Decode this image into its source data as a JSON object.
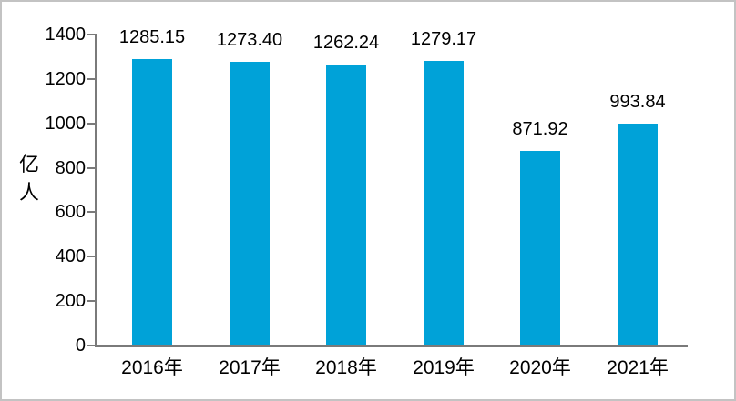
{
  "chart_data": {
    "type": "bar",
    "title": "",
    "categories": [
      "2016年",
      "2017年",
      "2018年",
      "2019年",
      "2020年",
      "2021年"
    ],
    "values": [
      1285.15,
      1273.4,
      1262.24,
      1279.17,
      871.92,
      993.84
    ],
    "data_labels": [
      "1285.15",
      "1273.40",
      "1262.24",
      "1279.17",
      "871.92",
      "993.84"
    ],
    "xlabel": "",
    "ylabel": "亿人",
    "ylim": [
      0,
      1400
    ],
    "ytick_step": 200,
    "ytick_labels": [
      "0",
      "200",
      "400",
      "600",
      "800",
      "1000",
      "1200",
      "1400"
    ],
    "legend_position": "none",
    "grid": false,
    "colors": {
      "bar": "#00a2d8",
      "axis": "#7a7a7a",
      "text": "#000000",
      "frame_border": "#c3c3c3",
      "background": "#ffffff"
    }
  }
}
